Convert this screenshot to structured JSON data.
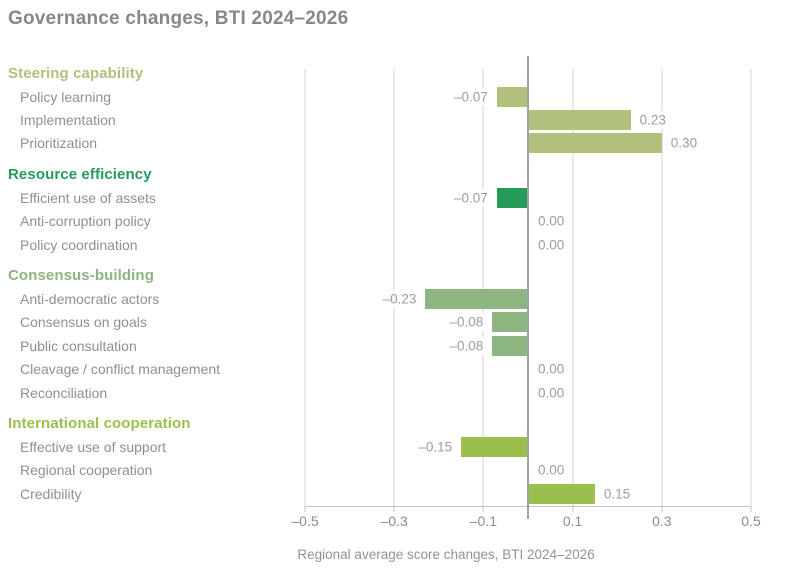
{
  "title": "Governance changes, BTI 2024–2026",
  "caption": "Regional average score changes, BTI 2024–2026",
  "colors": {
    "title_text": "#85888b",
    "item_label_text": "#8d9093",
    "value_label_text": "#9a9da0",
    "axis_label_text": "#8b8e91",
    "gridline": "#d3d4d6",
    "zero_line": "#9fa1a3",
    "axis_line": "#c2c4c6",
    "steering_capability": "#b1c07d",
    "resource_efficiency": "#249b59",
    "consensus_building": "#8db581",
    "international_cooperation": "#9bbf4c"
  },
  "chart_data": {
    "type": "bar",
    "orientation": "horizontal",
    "title": "Governance changes, BTI 2024–2026",
    "xlabel": "Regional average score changes, BTI 2024–2026",
    "xlim": [
      -0.5,
      0.5
    ],
    "x_ticks": {
      "values": [
        -0.5,
        -0.3,
        -0.1,
        0.1,
        0.3,
        0.5
      ],
      "labels": [
        "–0.5",
        "–0.3",
        "–0.1",
        "0.1",
        "0.3",
        "0.5"
      ]
    },
    "grid": "vertical gridlines at ticks; darker vertical zero line",
    "legend": "none",
    "groups": [
      {
        "label": "Steering capability",
        "color": "#b1c07d",
        "items": [
          {
            "label": "Policy learning",
            "value": -0.07,
            "display": "–0.07"
          },
          {
            "label": "Implementation",
            "value": 0.23,
            "display": "0.23"
          },
          {
            "label": "Prioritization",
            "value": 0.3,
            "display": "0.30"
          }
        ]
      },
      {
        "label": "Resource efficiency",
        "color": "#249b59",
        "items": [
          {
            "label": "Efficient use of assets",
            "value": -0.07,
            "display": "–0.07"
          },
          {
            "label": "Anti-corruption policy",
            "value": 0.0,
            "display": "0.00"
          },
          {
            "label": "Policy coordination",
            "value": 0.0,
            "display": "0.00"
          }
        ]
      },
      {
        "label": "Consensus-building",
        "color": "#8db581",
        "items": [
          {
            "label": "Anti-democratic actors",
            "value": -0.23,
            "display": "–0.23"
          },
          {
            "label": "Consensus on goals",
            "value": -0.08,
            "display": "–0.08"
          },
          {
            "label": "Public consultation",
            "value": -0.08,
            "display": "–0.08"
          },
          {
            "label": "Cleavage / conflict management",
            "value": 0.0,
            "display": "0.00"
          },
          {
            "label": "Reconciliation",
            "value": 0.0,
            "display": "0.00"
          }
        ]
      },
      {
        "label": "International cooperation",
        "color": "#9bbf4c",
        "items": [
          {
            "label": "Effective use of support",
            "value": -0.15,
            "display": "–0.15"
          },
          {
            "label": "Regional cooperation",
            "value": 0.0,
            "display": "0.00"
          },
          {
            "label": "Credibility",
            "value": 0.15,
            "display": "0.15"
          }
        ]
      }
    ]
  }
}
